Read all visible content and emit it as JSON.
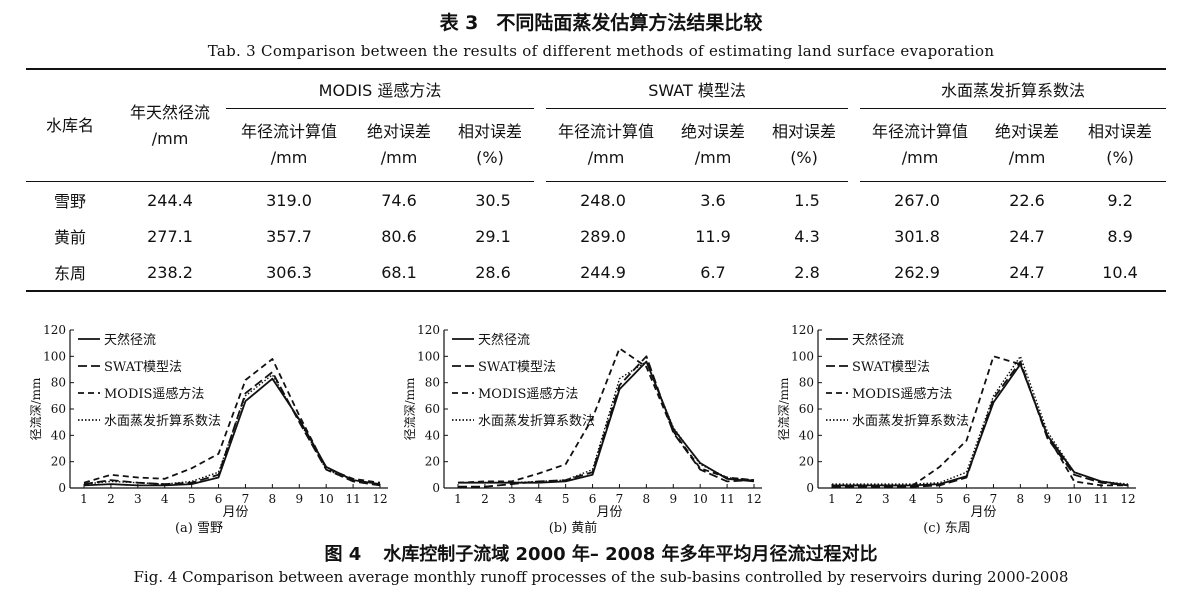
{
  "table": {
    "number": "表 3",
    "title": "不同陆面蒸发估算方法结果比较",
    "subtitle": "Tab. 3   Comparison between the results of different methods of estimating land surface evaporation",
    "col_reservoir": "水库名",
    "col_natural": "年天然径流",
    "col_natural_unit": "/mm",
    "groups": [
      "MODIS 遥感方法",
      "SWAT 模型法",
      "水面蒸发折算系数法"
    ],
    "subcols": [
      {
        "label": "年径流计算值",
        "unit": "/mm"
      },
      {
        "label": "绝对误差",
        "unit": "/mm"
      },
      {
        "label": "相对误差",
        "unit": "(%)"
      }
    ],
    "rows": [
      {
        "name": "雪野",
        "values": [
          "244.4",
          "319.0",
          "74.6",
          "30.5",
          "248.0",
          "3.6",
          "1.5",
          "267.0",
          "22.6",
          "9.2"
        ]
      },
      {
        "name": "黄前",
        "values": [
          "277.1",
          "357.7",
          "80.6",
          "29.1",
          "289.0",
          "11.9",
          "4.3",
          "301.8",
          "24.7",
          "8.9"
        ]
      },
      {
        "name": "东周",
        "values": [
          "238.2",
          "306.3",
          "68.1",
          "28.6",
          "244.9",
          "6.7",
          "2.8",
          "262.9",
          "24.7",
          "10.4"
        ]
      }
    ]
  },
  "figure": {
    "number": "图 4",
    "title": "水库控制子流域 2000 年– 2008 年多年平均月径流过程对比",
    "subtitle": "Fig. 4   Comparison between average monthly runoff processes of the sub-basins controlled by reservoirs during 2000-2008"
  },
  "chart_data": [
    {
      "type": "line",
      "caption": "(a) 雪野",
      "xlabel": "月份",
      "ylabel": "径流深/mm",
      "xlim": [
        1,
        12
      ],
      "ylim": [
        0,
        120
      ],
      "yticks": [
        0,
        20,
        40,
        60,
        80,
        100,
        120
      ],
      "x": [
        1,
        2,
        3,
        4,
        5,
        6,
        7,
        8,
        9,
        10,
        11,
        12
      ],
      "series": [
        {
          "name": "天然径流",
          "dash": "solid",
          "values": [
            2,
            3,
            2,
            2,
            3,
            8,
            66,
            83,
            52,
            16,
            6,
            3
          ]
        },
        {
          "name": "SWAT模型法",
          "dash": "longdash",
          "values": [
            3,
            6,
            4,
            3,
            4,
            10,
            72,
            88,
            50,
            14,
            5,
            2
          ]
        },
        {
          "name": "MODIS遥感方法",
          "dash": "dash",
          "values": [
            4,
            10,
            8,
            7,
            15,
            26,
            82,
            98,
            55,
            15,
            7,
            4
          ]
        },
        {
          "name": "水面蒸发折算系数法",
          "dash": "dot",
          "values": [
            3,
            5,
            4,
            3,
            5,
            12,
            70,
            86,
            51,
            14,
            6,
            3
          ]
        }
      ]
    },
    {
      "type": "line",
      "caption": "(b) 黄前",
      "xlabel": "月份",
      "ylabel": "径流深/mm",
      "xlim": [
        1,
        12
      ],
      "ylim": [
        0,
        120
      ],
      "yticks": [
        0,
        20,
        40,
        60,
        80,
        100,
        120
      ],
      "x": [
        1,
        2,
        3,
        4,
        5,
        6,
        7,
        8,
        9,
        10,
        11,
        12
      ],
      "series": [
        {
          "name": "天然径流",
          "dash": "solid",
          "values": [
            4,
            4,
            4,
            4,
            5,
            10,
            75,
            96,
            45,
            19,
            7,
            5
          ]
        },
        {
          "name": "SWAT模型法",
          "dash": "longdash",
          "values": [
            1,
            1,
            3,
            5,
            6,
            12,
            78,
            100,
            42,
            14,
            5,
            6
          ]
        },
        {
          "name": "MODIS遥感方法",
          "dash": "dash",
          "values": [
            4,
            5,
            5,
            11,
            18,
            53,
            106,
            92,
            43,
            15,
            8,
            6
          ]
        },
        {
          "name": "水面蒸发折算系数法",
          "dash": "dot",
          "values": [
            4,
            4,
            4,
            5,
            6,
            14,
            83,
            96,
            46,
            18,
            8,
            6
          ]
        }
      ]
    },
    {
      "type": "line",
      "caption": "(c) 东周",
      "xlabel": "月份",
      "ylabel": "径流深/mm",
      "xlim": [
        1,
        12
      ],
      "ylim": [
        0,
        120
      ],
      "yticks": [
        0,
        20,
        40,
        60,
        80,
        100,
        120
      ],
      "x": [
        1,
        2,
        3,
        4,
        5,
        6,
        7,
        8,
        9,
        10,
        11,
        12
      ],
      "series": [
        {
          "name": "天然径流",
          "dash": "solid",
          "values": [
            2,
            2,
            2,
            2,
            3,
            9,
            65,
            94,
            40,
            12,
            5,
            2
          ]
        },
        {
          "name": "SWAT模型法",
          "dash": "longdash",
          "values": [
            1,
            1,
            1,
            1,
            2,
            8,
            68,
            96,
            38,
            10,
            4,
            2
          ]
        },
        {
          "name": "MODIS遥感方法",
          "dash": "dash",
          "values": [
            2,
            2,
            2,
            2,
            16,
            36,
            100,
            94,
            40,
            5,
            2,
            2
          ]
        },
        {
          "name": "水面蒸发折算系数法",
          "dash": "dot",
          "values": [
            3,
            3,
            3,
            3,
            4,
            12,
            70,
            100,
            43,
            12,
            5,
            3
          ]
        }
      ]
    }
  ]
}
